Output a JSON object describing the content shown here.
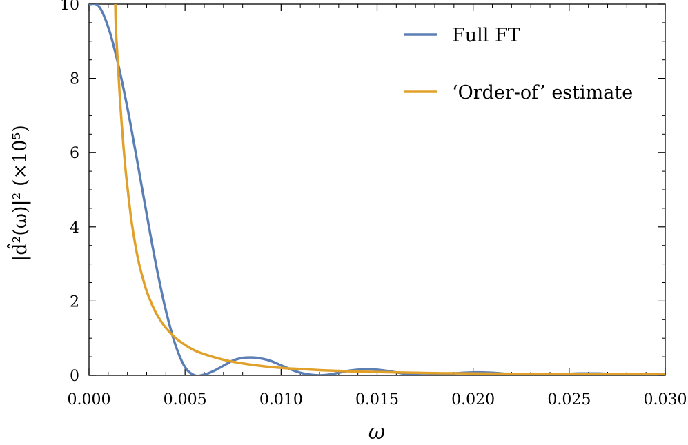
{
  "chart_data": {
    "type": "line",
    "xlabel": "ω",
    "ylabel": "|d̂²(ω)|² (×10⁵)",
    "xlim": [
      0.0,
      0.03
    ],
    "ylim": [
      0,
      10
    ],
    "x_ticks": [
      "0.000",
      "0.005",
      "0.010",
      "0.015",
      "0.020",
      "0.025",
      "0.030"
    ],
    "x_tick_values": [
      0.0,
      0.005,
      0.01,
      0.015,
      0.02,
      0.025,
      0.03
    ],
    "y_ticks": [
      "0",
      "2",
      "4",
      "6",
      "8",
      "10"
    ],
    "y_tick_values": [
      0,
      2,
      4,
      6,
      8,
      10
    ],
    "legend_position": "top-right",
    "series": [
      {
        "name": "Full FT",
        "color": "#5b7fb5",
        "x": [
          0.0,
          0.0005,
          0.001,
          0.0015,
          0.002,
          0.0025,
          0.003,
          0.0035,
          0.004,
          0.0045,
          0.005,
          0.0055,
          0.006,
          0.0065,
          0.007,
          0.0075,
          0.008,
          0.0085,
          0.009,
          0.0095,
          0.01,
          0.0105,
          0.011,
          0.0115,
          0.012,
          0.0125,
          0.013,
          0.0135,
          0.014,
          0.0145,
          0.015,
          0.0155,
          0.016,
          0.0165,
          0.017,
          0.0175,
          0.018,
          0.0185,
          0.019,
          0.0195,
          0.02,
          0.0205,
          0.021,
          0.0215,
          0.022,
          0.0225,
          0.023,
          0.0235,
          0.024,
          0.0245,
          0.025,
          0.0255,
          0.026,
          0.0265,
          0.027,
          0.0275,
          0.028,
          0.0285,
          0.029,
          0.0295,
          0.03
        ],
        "y": [
          10.0,
          9.95,
          9.38,
          8.42,
          7.2,
          5.8,
          4.35,
          2.95,
          1.75,
          0.82,
          0.22,
          0.0,
          0.02,
          0.12,
          0.26,
          0.4,
          0.47,
          0.48,
          0.45,
          0.38,
          0.27,
          0.16,
          0.07,
          0.02,
          0.0,
          0.02,
          0.07,
          0.12,
          0.15,
          0.16,
          0.15,
          0.12,
          0.08,
          0.04,
          0.01,
          0.0,
          0.01,
          0.03,
          0.05,
          0.07,
          0.08,
          0.08,
          0.07,
          0.05,
          0.03,
          0.01,
          0.0,
          0.01,
          0.02,
          0.03,
          0.04,
          0.05,
          0.05,
          0.05,
          0.04,
          0.03,
          0.02,
          0.01,
          0.02,
          0.03,
          0.04
        ]
      },
      {
        "name": "‘Order-of’ estimate",
        "color": "#e0a02a",
        "x": [
          0.00137,
          0.0014,
          0.0015,
          0.0016,
          0.0017,
          0.0018,
          0.0019,
          0.002,
          0.0022,
          0.0024,
          0.0026,
          0.0028,
          0.003,
          0.0033,
          0.0036,
          0.004,
          0.0045,
          0.005,
          0.0055,
          0.006,
          0.007,
          0.008,
          0.009,
          0.01,
          0.011,
          0.012,
          0.013,
          0.014,
          0.015,
          0.016,
          0.017,
          0.018,
          0.019,
          0.02,
          0.021,
          0.022,
          0.023,
          0.024,
          0.025,
          0.026,
          0.027,
          0.028,
          0.029,
          0.03
        ],
        "y": [
          10.0,
          9.32,
          8.42,
          7.53,
          6.78,
          6.13,
          5.55,
          5.07,
          4.2,
          3.55,
          3.02,
          2.62,
          2.27,
          1.88,
          1.58,
          1.28,
          1.01,
          0.82,
          0.67,
          0.57,
          0.42,
          0.32,
          0.25,
          0.2,
          0.17,
          0.14,
          0.12,
          0.1,
          0.09,
          0.08,
          0.07,
          0.06,
          0.055,
          0.05,
          0.046,
          0.042,
          0.038,
          0.035,
          0.032,
          0.03,
          0.028,
          0.026,
          0.024,
          0.022
        ]
      }
    ]
  }
}
